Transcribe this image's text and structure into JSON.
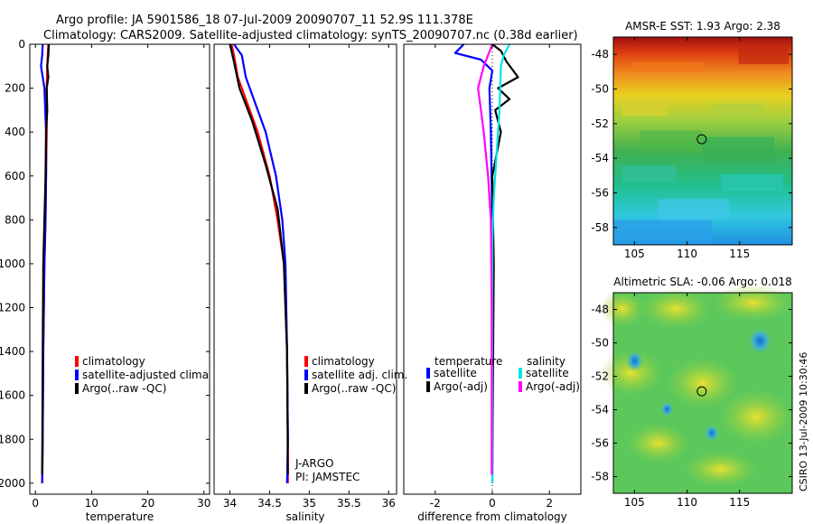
{
  "title_line1": "Argo profile: JA 5901586_18 07-Jul-2009 20090707_11 52.9S 111.378E",
  "title_line2": "Climatology: CARS2009. Satellite-adjusted climatology: synTS_20090707.nc (0.38d earlier)",
  "side_stamp": "CSIRO 13-Jul-2009 10:30:46",
  "colors": {
    "climatology": "#ff0000",
    "satellite": "#0000ff",
    "argo": "#000000",
    "sat_sal": "#00e5e5",
    "argo_sal": "#ff00ff"
  },
  "chart_data": [
    {
      "id": "temp",
      "type": "line",
      "xlabel": "temperature",
      "ylabel": "",
      "xlim": [
        -1,
        31
      ],
      "ylim": [
        0,
        2050
      ],
      "xticks": [
        "0",
        "10",
        "20",
        "30"
      ],
      "xtick_values": [
        0,
        10,
        20,
        30
      ],
      "yticks": [
        "0",
        "200",
        "400",
        "600",
        "800",
        "1000",
        "1200",
        "1400",
        "1600",
        "1800",
        "2000"
      ],
      "ytick_values": [
        0,
        200,
        400,
        600,
        800,
        1000,
        1200,
        1400,
        1600,
        1800,
        2000
      ],
      "legend": [
        "climatology",
        "satellite-adjusted climatology",
        "Argo(..raw -QC)"
      ],
      "series": [
        {
          "name": "climatology",
          "color": "#ff0000",
          "x": [
            2.3,
            2.2,
            2.1,
            2.0,
            2.0,
            1.9,
            1.8,
            1.6,
            1.4,
            1.3,
            1.2
          ],
          "y": [
            0,
            50,
            100,
            200,
            400,
            600,
            800,
            1000,
            1400,
            1800,
            2000
          ]
        },
        {
          "name": "satellite-adjusted climatology",
          "color": "#0000ff",
          "x": [
            1.3,
            1.2,
            1.0,
            1.6,
            1.9,
            1.9,
            1.8,
            1.6,
            1.4,
            1.3,
            1.2
          ],
          "y": [
            0,
            50,
            100,
            200,
            400,
            600,
            800,
            1000,
            1400,
            1800,
            2000
          ]
        },
        {
          "name": "Argo(..raw -QC)",
          "color": "#000000",
          "x": [
            2.4,
            2.3,
            2.1,
            2.3,
            2.0,
            2.1,
            1.9,
            1.8,
            1.6,
            1.4,
            1.3,
            1.2
          ],
          "y": [
            0,
            50,
            100,
            150,
            200,
            300,
            400,
            600,
            800,
            1000,
            1400,
            1960
          ]
        }
      ]
    },
    {
      "id": "sal",
      "type": "line",
      "xlabel": "salinity",
      "xlim": [
        33.8,
        36.1
      ],
      "ylim": [
        0,
        2050
      ],
      "xticks": [
        "34",
        "34.5",
        "35",
        "35.5",
        "36"
      ],
      "xtick_values": [
        34,
        34.5,
        35,
        35.5,
        36
      ],
      "yticks": [],
      "ytick_values": [],
      "legend": [
        "climatology",
        "satellite adj. clim.",
        "Argo(..raw -QC)"
      ],
      "annotation": [
        "J-ARGO",
        "PI: JAMSTEC"
      ],
      "series": [
        {
          "name": "climatology",
          "color": "#ff0000",
          "x": [
            34.02,
            34.05,
            34.1,
            34.2,
            34.35,
            34.5,
            34.6,
            34.68,
            34.72,
            34.73,
            34.73
          ],
          "y": [
            0,
            50,
            150,
            250,
            400,
            600,
            800,
            1000,
            1400,
            1800,
            2000
          ]
        },
        {
          "name": "satellite adj. clim.",
          "color": "#0000ff",
          "x": [
            34.05,
            34.15,
            34.2,
            34.3,
            34.45,
            34.58,
            34.66,
            34.7,
            34.72,
            34.73,
            34.72
          ],
          "y": [
            0,
            50,
            150,
            250,
            400,
            600,
            800,
            1000,
            1400,
            1800,
            2000
          ]
        },
        {
          "name": "Argo(..raw -QC)",
          "color": "#000000",
          "x": [
            34.0,
            34.05,
            34.12,
            34.28,
            34.45,
            34.6,
            34.68,
            34.72,
            34.73
          ],
          "y": [
            0,
            80,
            200,
            350,
            550,
            750,
            1000,
            1400,
            1960
          ]
        }
      ]
    },
    {
      "id": "diff",
      "type": "line",
      "xlabel": "difference from climatology",
      "xlim": [
        -3.1,
        3.1
      ],
      "ylim": [
        0,
        2050
      ],
      "xticks": [
        "-2",
        "0",
        "2"
      ],
      "xtick_values": [
        -2,
        0,
        2
      ],
      "yticks": [],
      "ytick_values": [],
      "legend_left": [
        "temperature",
        "satellite",
        "Argo(-adj)"
      ],
      "legend_right": [
        "salinity",
        "satellite",
        "Argo(-adj)"
      ],
      "series": [
        {
          "name": "temperature satellite",
          "color": "#0000ff",
          "x": [
            -1.0,
            -1.3,
            -0.4,
            0.0,
            -0.1,
            -0.05,
            0.0,
            0.0
          ],
          "y": [
            0,
            40,
            70,
            120,
            200,
            400,
            800,
            2000
          ]
        },
        {
          "name": "temperature Argo(-adj)",
          "color": "#000000",
          "x": [
            0.0,
            0.3,
            0.5,
            0.9,
            0.2,
            0.6,
            0.1,
            0.3,
            0.0,
            0.05,
            0.0
          ],
          "y": [
            0,
            30,
            80,
            150,
            200,
            250,
            300,
            400,
            600,
            1000,
            1960
          ]
        },
        {
          "name": "salinity satellite",
          "color": "#00e5e5",
          "x": [
            0.6,
            0.4,
            0.3,
            0.25,
            0.15,
            0.05,
            0.0,
            0.0
          ],
          "y": [
            0,
            50,
            100,
            300,
            500,
            700,
            900,
            2000
          ]
        },
        {
          "name": "salinity Argo(-adj)",
          "color": "#ff00ff",
          "x": [
            0.0,
            -0.3,
            -0.5,
            -0.4,
            -0.3,
            -0.15,
            -0.05,
            -0.02,
            -0.02
          ],
          "y": [
            0,
            100,
            200,
            300,
            400,
            600,
            800,
            1200,
            1960
          ]
        }
      ]
    },
    {
      "id": "sst_map",
      "type": "heatmap",
      "title": "AMSR-E SST: 1.93 Argo: 2.38",
      "xlim": [
        103,
        120
      ],
      "ylim": [
        -59,
        -47
      ],
      "xticks": [
        "105",
        "110",
        "115"
      ],
      "xtick_values": [
        105,
        110,
        115
      ],
      "yticks": [
        "-48",
        "-50",
        "-52",
        "-54",
        "-56",
        "-58"
      ],
      "ytick_values": [
        -48,
        -50,
        -52,
        -54,
        -56,
        -58
      ],
      "marker": {
        "lon": 111.4,
        "lat": -52.9
      }
    },
    {
      "id": "sla_map",
      "type": "heatmap",
      "title": "Altimetric SLA: -0.06 Argo: 0.018",
      "xlim": [
        103,
        120
      ],
      "ylim": [
        -59,
        -47
      ],
      "xticks": [
        "105",
        "110",
        "115"
      ],
      "xtick_values": [
        105,
        110,
        115
      ],
      "yticks": [
        "-48",
        "-50",
        "-52",
        "-54",
        "-56",
        "-58"
      ],
      "ytick_values": [
        -48,
        -50,
        -52,
        -54,
        -56,
        -58
      ],
      "marker": {
        "lon": 111.4,
        "lat": -52.9
      }
    }
  ]
}
